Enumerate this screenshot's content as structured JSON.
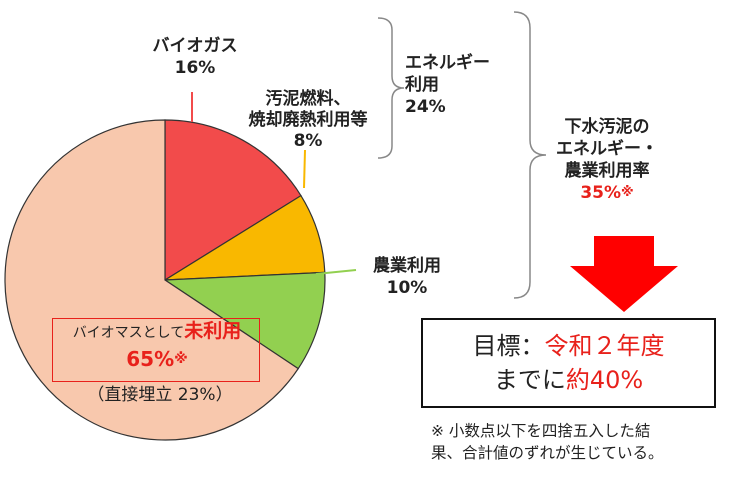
{
  "chart_data": {
    "type": "pie",
    "slices": [
      {
        "name": "バイオガス",
        "value": 16,
        "label": "16%",
        "color": "#f24b4b"
      },
      {
        "name": "汚泥燃料、焼却廃熱利用等",
        "value": 8,
        "label": "8%",
        "color": "#f9b800"
      },
      {
        "name": "農業利用",
        "value": 10,
        "label": "10%",
        "color": "#92d050"
      },
      {
        "name": "バイオマスとして未利用",
        "value": 65,
        "label": "65%",
        "color": "#f8c8ad"
      }
    ],
    "annotations": {
      "biogas_name": "バイオガス",
      "biogas_pct": "16%",
      "sludge_name_line1": "汚泥燃料、",
      "sludge_name_line2": "焼却廃熱利用等",
      "sludge_pct": "8%",
      "agri_name": "農業利用",
      "agri_pct": "10%",
      "unused_prefix": "バイオマスとして",
      "unused_name": "未利用",
      "unused_pct": "65%",
      "unused_mark": "※",
      "landfill": "（直接埋立 23%）"
    }
  },
  "energy_group": {
    "line1": "エネルギー",
    "line2": "利用",
    "pct": "24%"
  },
  "rate_group": {
    "line1": "下水汚泥の",
    "line2": "エネルギー・",
    "line3": "農業利用率",
    "pct": "35%",
    "mark": "※"
  },
  "target": {
    "label": "目標：",
    "year": "令和２年度",
    "prefix": "までに",
    "goal": "約40%"
  },
  "note": {
    "line1": "※ 小数点以下を四捨五入した結",
    "line2": "果、合計値のずれが生じている。"
  },
  "colors": {
    "accent_red": "#e8211b",
    "arrow_red": "#ff0000",
    "bracket": "#888888"
  }
}
